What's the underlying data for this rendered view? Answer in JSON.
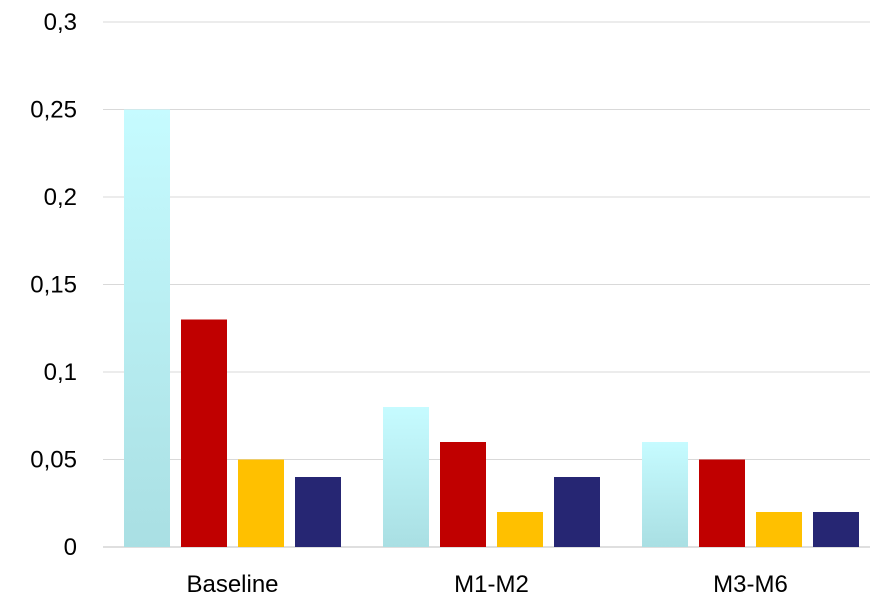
{
  "chart_data": {
    "type": "bar",
    "categories": [
      "Baseline",
      "M1-M2",
      "M3-M6"
    ],
    "series": [
      {
        "color": "#c6fbff",
        "color_bottom": "#a9dfe3",
        "gradient": true,
        "values": [
          0.25,
          0.08,
          0.06
        ]
      },
      {
        "color": "#c00000",
        "values": [
          0.13,
          0.06,
          0.05
        ]
      },
      {
        "color": "#ffc000",
        "values": [
          0.05,
          0.02,
          0.02
        ]
      },
      {
        "color": "#262673",
        "values": [
          0.04,
          0.04,
          0.02
        ]
      }
    ],
    "yticks": [
      "0",
      "0,05",
      "0,1",
      "0,15",
      "0,2",
      "0,25",
      "0,3"
    ],
    "ytick_values": [
      0,
      0.05,
      0.1,
      0.15,
      0.2,
      0.25,
      0.3
    ],
    "ylim": [
      0,
      0.3
    ],
    "grid": true,
    "legend": "none",
    "title": "",
    "xlabel": "",
    "ylabel": ""
  }
}
